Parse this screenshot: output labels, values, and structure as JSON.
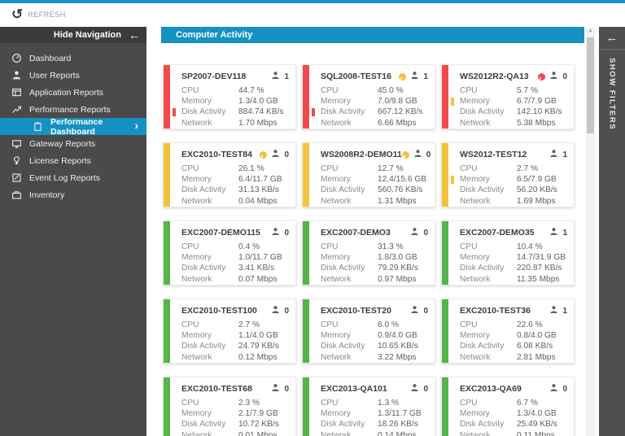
{
  "app": {
    "refresh_label": "REFRESH"
  },
  "colors": {
    "accent": "#1591c3",
    "red": "#f2494e",
    "yellow": "#f2c33c",
    "green": "#55b44a"
  },
  "sidebar": {
    "header": {
      "label": "Hide Navigation"
    },
    "items": [
      {
        "label": "Dashboard",
        "icon": "dashboard-icon",
        "selected": false
      },
      {
        "label": "User Reports",
        "icon": "user-icon",
        "selected": false
      },
      {
        "label": "Application Reports",
        "icon": "application-icon",
        "selected": false
      },
      {
        "label": "Performance Reports",
        "icon": "performance-icon",
        "selected": false
      },
      {
        "label": "Performance Dashboard",
        "icon": "clipboard-icon",
        "selected": true
      },
      {
        "label": "Gateway Reports",
        "icon": "gateway-icon",
        "selected": false
      },
      {
        "label": "License Reports",
        "icon": "license-icon",
        "selected": false
      },
      {
        "label": "Event Log Reports",
        "icon": "eventlog-icon",
        "selected": false
      },
      {
        "label": "Inventory",
        "icon": "inventory-icon",
        "selected": false
      }
    ]
  },
  "main": {
    "section_title": "Computer Activity",
    "cards": [
      {
        "name": "SP2007-DEV118",
        "severity": "red",
        "alert": null,
        "users": "1",
        "metrics": [
          {
            "label": "CPU",
            "value": "44.7 %",
            "marker": null
          },
          {
            "label": "Memory",
            "value": "1.3/4.0 GB",
            "marker": null
          },
          {
            "label": "Disk Activity",
            "value": "884.74 KB/s",
            "marker": "red"
          },
          {
            "label": "Network",
            "value": "1.70 Mbps",
            "marker": null
          }
        ]
      },
      {
        "name": "SQL2008-TEST16",
        "severity": "red",
        "alert": "yellow",
        "users": "1",
        "metrics": [
          {
            "label": "CPU",
            "value": "45.0 %",
            "marker": null
          },
          {
            "label": "Memory",
            "value": "7.0/9.8 GB",
            "marker": null
          },
          {
            "label": "Disk Activity",
            "value": "667.12 KB/s",
            "marker": "red"
          },
          {
            "label": "Network",
            "value": "6.66 Mbps",
            "marker": null
          }
        ]
      },
      {
        "name": "WS2012R2-QA13",
        "severity": "red",
        "alert": "red",
        "users": "0",
        "metrics": [
          {
            "label": "CPU",
            "value": "5.7 %",
            "marker": null
          },
          {
            "label": "Memory",
            "value": "6.7/7.9 GB",
            "marker": "yellow"
          },
          {
            "label": "Disk Activity",
            "value": "142.10 KB/s",
            "marker": null
          },
          {
            "label": "Network",
            "value": "5.38 Mbps",
            "marker": null
          }
        ]
      },
      {
        "name": "EXC2010-TEST84",
        "severity": "yellow",
        "alert": "yellow",
        "users": "0",
        "metrics": [
          {
            "label": "CPU",
            "value": "26.1 %",
            "marker": null
          },
          {
            "label": "Memory",
            "value": "6.4/11.7 GB",
            "marker": null
          },
          {
            "label": "Disk Activity",
            "value": "31.13 KB/s",
            "marker": null
          },
          {
            "label": "Network",
            "value": "0.04 Mbps",
            "marker": null
          }
        ]
      },
      {
        "name": "WS2008R2-DEMO11",
        "severity": "yellow",
        "alert": "yellow",
        "users": "0",
        "metrics": [
          {
            "label": "CPU",
            "value": "12.7 %",
            "marker": null
          },
          {
            "label": "Memory",
            "value": "12.4/15.6 GB",
            "marker": null
          },
          {
            "label": "Disk Activity",
            "value": "560.76 KB/s",
            "marker": null
          },
          {
            "label": "Network",
            "value": "1.31 Mbps",
            "marker": null
          }
        ]
      },
      {
        "name": "WS2012-TEST12",
        "severity": "yellow",
        "alert": null,
        "users": "1",
        "metrics": [
          {
            "label": "CPU",
            "value": "2.7 %",
            "marker": null
          },
          {
            "label": "Memory",
            "value": "6.5/7.9 GB",
            "marker": "yellow"
          },
          {
            "label": "Disk Activity",
            "value": "56.20 KB/s",
            "marker": null
          },
          {
            "label": "Network",
            "value": "1.69 Mbps",
            "marker": null
          }
        ]
      },
      {
        "name": "EXC2007-DEMO115",
        "severity": "green",
        "alert": null,
        "users": "0",
        "metrics": [
          {
            "label": "CPU",
            "value": "0.4 %",
            "marker": null
          },
          {
            "label": "Memory",
            "value": "1.0/11.7 GB",
            "marker": null
          },
          {
            "label": "Disk Activity",
            "value": "3.41 KB/s",
            "marker": null
          },
          {
            "label": "Network",
            "value": "0.07 Mbps",
            "marker": null
          }
        ]
      },
      {
        "name": "EXC2007-DEMO3",
        "severity": "green",
        "alert": null,
        "users": "0",
        "metrics": [
          {
            "label": "CPU",
            "value": "31.3 %",
            "marker": null
          },
          {
            "label": "Memory",
            "value": "1.8/3.0 GB",
            "marker": null
          },
          {
            "label": "Disk Activity",
            "value": "79.29 KB/s",
            "marker": null
          },
          {
            "label": "Network",
            "value": "0.97 Mbps",
            "marker": null
          }
        ]
      },
      {
        "name": "EXC2007-DEMO35",
        "severity": "green",
        "alert": null,
        "users": "1",
        "metrics": [
          {
            "label": "CPU",
            "value": "10.4 %",
            "marker": null
          },
          {
            "label": "Memory",
            "value": "14.7/31.9 GB",
            "marker": null
          },
          {
            "label": "Disk Activity",
            "value": "220.87 KB/s",
            "marker": null
          },
          {
            "label": "Network",
            "value": "11.35 Mbps",
            "marker": null
          }
        ]
      },
      {
        "name": "EXC2010-TEST100",
        "severity": "green",
        "alert": null,
        "users": "0",
        "metrics": [
          {
            "label": "CPU",
            "value": "2.7 %",
            "marker": null
          },
          {
            "label": "Memory",
            "value": "1.1/4.0 GB",
            "marker": null
          },
          {
            "label": "Disk Activity",
            "value": "24.79 KB/s",
            "marker": null
          },
          {
            "label": "Network",
            "value": "0.12 Mbps",
            "marker": null
          }
        ]
      },
      {
        "name": "EXC2010-TEST20",
        "severity": "green",
        "alert": null,
        "users": "0",
        "metrics": [
          {
            "label": "CPU",
            "value": "6.0 %",
            "marker": null
          },
          {
            "label": "Memory",
            "value": "0.9/4.0 GB",
            "marker": null
          },
          {
            "label": "Disk Activity",
            "value": "10.65 KB/s",
            "marker": null
          },
          {
            "label": "Network",
            "value": "3.22 Mbps",
            "marker": null
          }
        ]
      },
      {
        "name": "EXC2010-TEST36",
        "severity": "green",
        "alert": null,
        "users": "1",
        "metrics": [
          {
            "label": "CPU",
            "value": "22.6 %",
            "marker": null
          },
          {
            "label": "Memory",
            "value": "0.8/4.0 GB",
            "marker": null
          },
          {
            "label": "Disk Activity",
            "value": "6.08 KB/s",
            "marker": null
          },
          {
            "label": "Network",
            "value": "2.81 Mbps",
            "marker": null
          }
        ]
      },
      {
        "name": "EXC2010-TEST68",
        "severity": "green",
        "alert": null,
        "users": "0",
        "metrics": [
          {
            "label": "CPU",
            "value": "2.3 %",
            "marker": null
          },
          {
            "label": "Memory",
            "value": "2.1/7.9 GB",
            "marker": null
          },
          {
            "label": "Disk Activity",
            "value": "10.72 KB/s",
            "marker": null
          },
          {
            "label": "Network",
            "value": "0.01 Mbps",
            "marker": null
          }
        ]
      },
      {
        "name": "EXC2013-QA101",
        "severity": "green",
        "alert": null,
        "users": "0",
        "metrics": [
          {
            "label": "CPU",
            "value": "1.3 %",
            "marker": null
          },
          {
            "label": "Memory",
            "value": "1.3/11.7 GB",
            "marker": null
          },
          {
            "label": "Disk Activity",
            "value": "18.26 KB/s",
            "marker": null
          },
          {
            "label": "Network",
            "value": "0.14 Mbps",
            "marker": null
          }
        ]
      },
      {
        "name": "EXC2013-QA69",
        "severity": "green",
        "alert": null,
        "users": "0",
        "metrics": [
          {
            "label": "CPU",
            "value": "6.7 %",
            "marker": null
          },
          {
            "label": "Memory",
            "value": "1.3/4.0 GB",
            "marker": null
          },
          {
            "label": "Disk Activity",
            "value": "25.49 KB/s",
            "marker": null
          },
          {
            "label": "Network",
            "value": "0.11 Mbps",
            "marker": null
          }
        ]
      }
    ]
  },
  "filters_panel": {
    "label": "SHOW FILTERS"
  }
}
